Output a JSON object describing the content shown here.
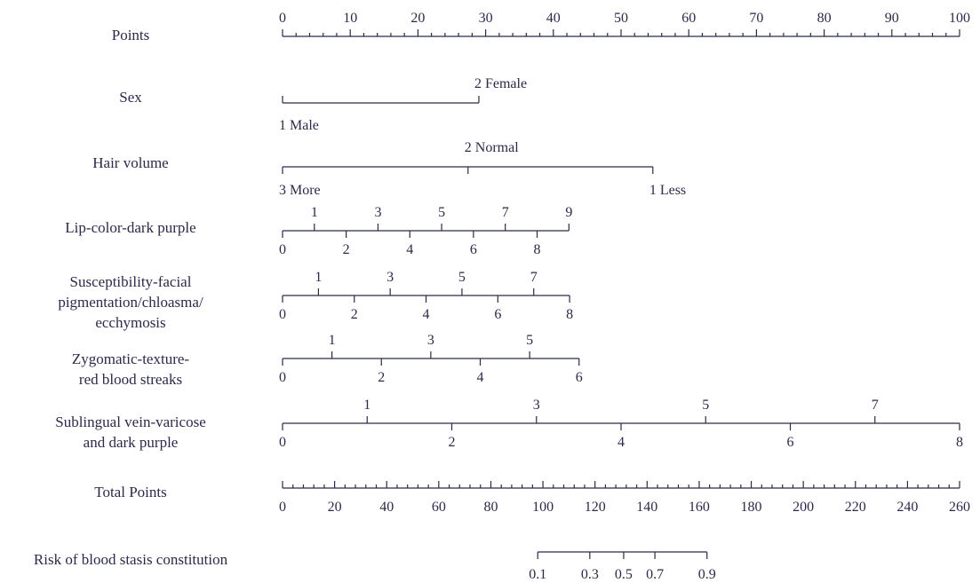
{
  "chart_data": {
    "type": "nomogram",
    "variables": [
      {
        "name": "Points",
        "lines": [
          "Points"
        ],
        "ticks": [
          {
            "value": "0",
            "points": 0
          },
          {
            "value": "10",
            "points": 10
          },
          {
            "value": "20",
            "points": 20
          },
          {
            "value": "30",
            "points": 30
          },
          {
            "value": "40",
            "points": 40
          },
          {
            "value": "50",
            "points": 50
          },
          {
            "value": "60",
            "points": 60
          },
          {
            "value": "70",
            "points": 70
          },
          {
            "value": "80",
            "points": 80
          },
          {
            "value": "90",
            "points": 90
          },
          {
            "value": "100",
            "points": 100
          }
        ],
        "minor_step": 2
      },
      {
        "name": "Sex",
        "lines": [
          "Sex"
        ],
        "ticks": [
          {
            "value": "2 Female",
            "points": 29
          },
          {
            "value": "1 Male",
            "points": 0
          }
        ]
      },
      {
        "name": "Hair volume",
        "lines": [
          "Hair volume"
        ],
        "ticks": [
          {
            "value": "2 Normal",
            "points": 27.4
          },
          {
            "value": "3 More",
            "points": 0
          },
          {
            "value": "1 Less",
            "points": 54.7
          }
        ]
      },
      {
        "name": "Lip-color-dark purple",
        "lines": [
          "Lip-color-dark purple"
        ],
        "ticks": [
          {
            "value": "1",
            "points": 4.7
          },
          {
            "value": "3",
            "points": 14.1
          },
          {
            "value": "5",
            "points": 23.5
          },
          {
            "value": "7",
            "points": 32.9
          },
          {
            "value": "9",
            "points": 42.3
          },
          {
            "value": "0",
            "points": 0
          },
          {
            "value": "2",
            "points": 9.4
          },
          {
            "value": "4",
            "points": 18.8
          },
          {
            "value": "6",
            "points": 28.2
          },
          {
            "value": "8",
            "points": 37.6
          }
        ]
      },
      {
        "name": "Susceptibility-facial pigmentation/chloasma/ecchymosis",
        "lines": [
          "Susceptibility-facial",
          "pigmentation/chloasma/",
          "ecchymosis"
        ],
        "ticks": [
          {
            "value": "1",
            "points": 5.3
          },
          {
            "value": "3",
            "points": 15.9
          },
          {
            "value": "5",
            "points": 26.5
          },
          {
            "value": "7",
            "points": 37.1
          },
          {
            "value": "0",
            "points": 0
          },
          {
            "value": "2",
            "points": 10.6
          },
          {
            "value": "4",
            "points": 21.2
          },
          {
            "value": "6",
            "points": 31.8
          },
          {
            "value": "8",
            "points": 42.4
          }
        ]
      },
      {
        "name": "Zygomatic-texture-red blood streaks",
        "lines": [
          "Zygomatic-texture-",
          "red blood streaks"
        ],
        "ticks": [
          {
            "value": "1",
            "points": 7.3
          },
          {
            "value": "3",
            "points": 21.9
          },
          {
            "value": "5",
            "points": 36.5
          },
          {
            "value": "0",
            "points": 0
          },
          {
            "value": "2",
            "points": 14.6
          },
          {
            "value": "4",
            "points": 29.2
          },
          {
            "value": "6",
            "points": 43.8
          }
        ]
      },
      {
        "name": "Sublingual vein-varicose and dark purple",
        "lines": [
          "Sublingual vein-varicose",
          "and dark purple"
        ],
        "ticks": [
          {
            "value": "1",
            "points": 12.5
          },
          {
            "value": "3",
            "points": 37.5
          },
          {
            "value": "5",
            "points": 62.5
          },
          {
            "value": "7",
            "points": 87.5
          },
          {
            "value": "0",
            "points": 0
          },
          {
            "value": "2",
            "points": 25
          },
          {
            "value": "4",
            "points": 50
          },
          {
            "value": "6",
            "points": 75
          },
          {
            "value": "8",
            "points": 100
          }
        ]
      },
      {
        "name": "Total Points",
        "lines": [
          "Total Points"
        ],
        "ticks": [
          {
            "value": "0",
            "points": 0
          },
          {
            "value": "20",
            "points": 20
          },
          {
            "value": "40",
            "points": 40
          },
          {
            "value": "60",
            "points": 60
          },
          {
            "value": "80",
            "points": 80
          },
          {
            "value": "100",
            "points": 100
          },
          {
            "value": "120",
            "points": 120
          },
          {
            "value": "140",
            "points": 140
          },
          {
            "value": "160",
            "points": 160
          },
          {
            "value": "180",
            "points": 180
          },
          {
            "value": "200",
            "points": 200
          },
          {
            "value": "220",
            "points": 220
          },
          {
            "value": "240",
            "points": 240
          },
          {
            "value": "260",
            "points": 260
          }
        ],
        "range": [
          0,
          260
        ],
        "minor_step": 4
      },
      {
        "name": "Risk of blood stasis constitution",
        "lines": [
          "Risk of blood stasis constitution"
        ],
        "ticks": [
          {
            "value": "0.1",
            "total_points": 98
          },
          {
            "value": "0.3",
            "total_points": 118
          },
          {
            "value": "0.5",
            "total_points": 131
          },
          {
            "value": "0.7",
            "total_points": 143
          },
          {
            "value": "0.9",
            "total_points": 163
          }
        ]
      }
    ]
  }
}
